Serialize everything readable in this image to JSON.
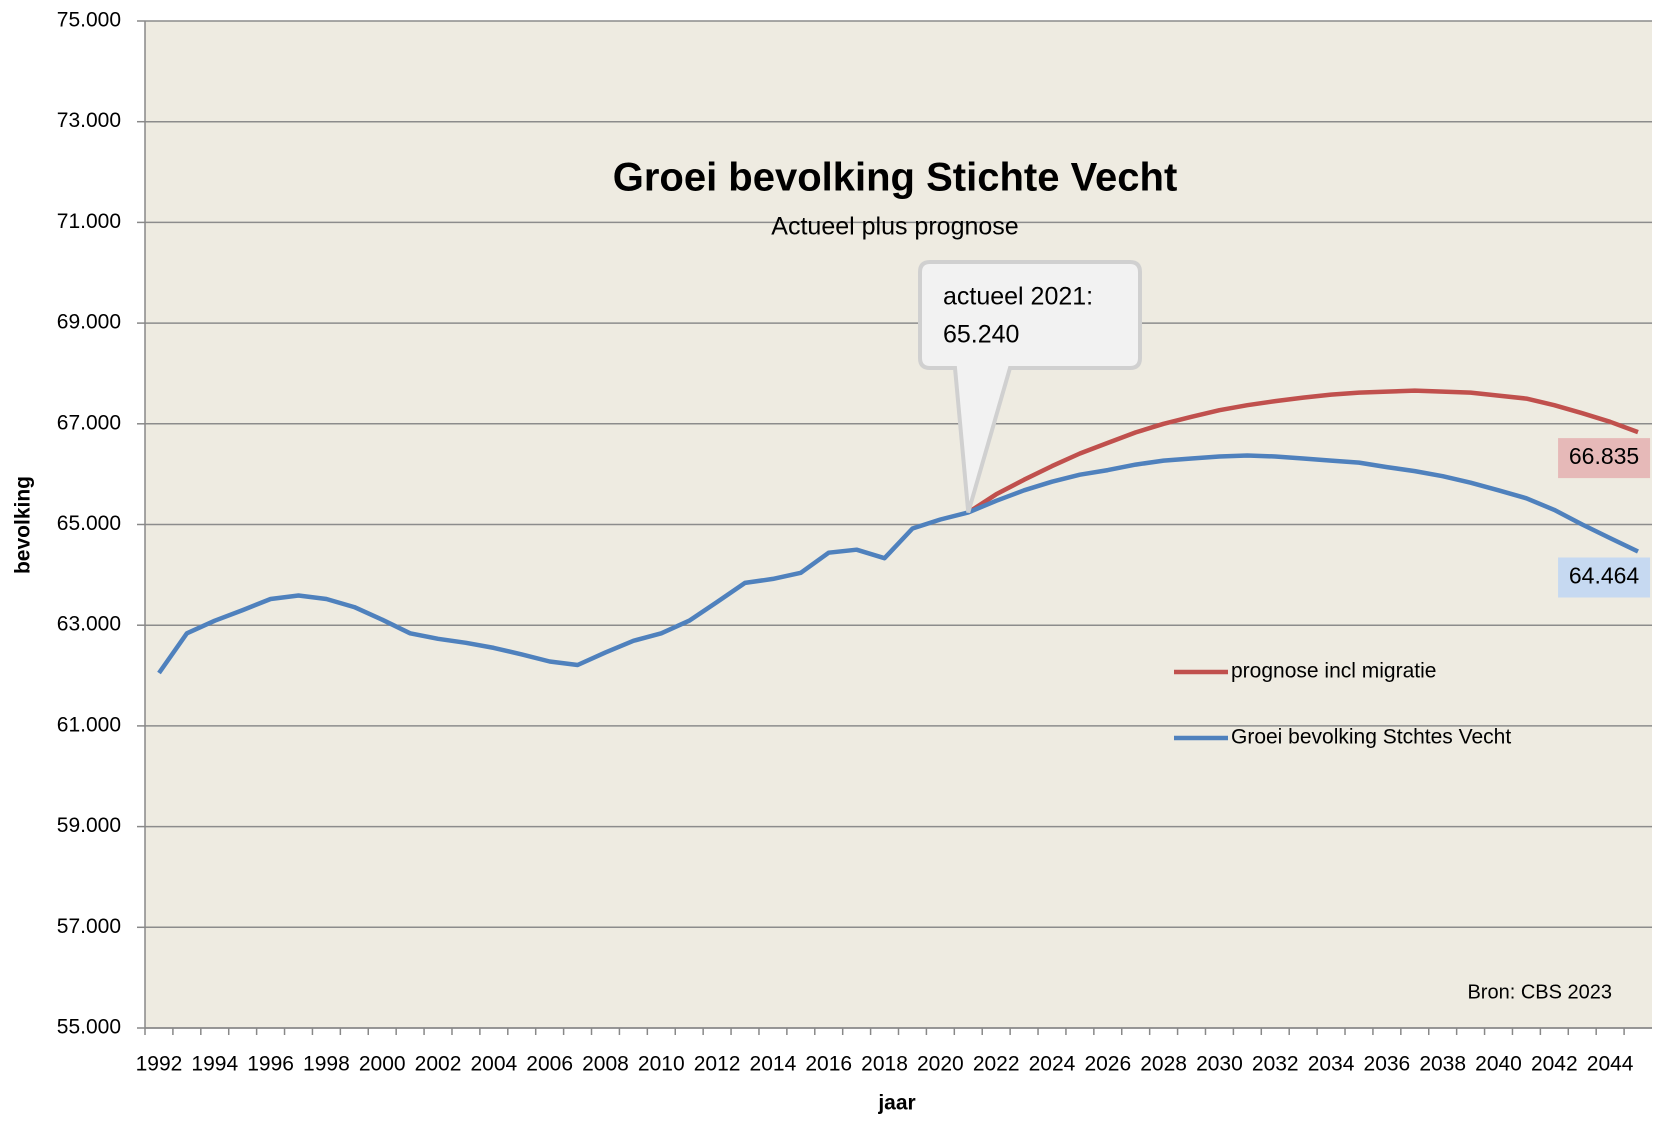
{
  "chart_data": {
    "type": "line",
    "title": "Groei bevolking Stichte Vecht",
    "subtitle": "Actueel plus prognose",
    "x_label": "jaar",
    "y_label": "bevolking",
    "source": "Bron: CBS 2023",
    "annotation": [
      "actueel 2021:",
      "65.240"
    ],
    "legend": "right",
    "grid": true,
    "categories": [
      "1992",
      null,
      "1994",
      null,
      "1996",
      null,
      "1998",
      null,
      "2000",
      null,
      "2002",
      null,
      "2004",
      null,
      "2006",
      null,
      "2008",
      null,
      "2010",
      null,
      "2012",
      null,
      "2014",
      null,
      "2016",
      null,
      "2018",
      null,
      "2020",
      null,
      "2022",
      null,
      "2024",
      null,
      "2026",
      null,
      "2028",
      null,
      "2030",
      null,
      "2032",
      null,
      "2034",
      null,
      "2036",
      null,
      "2038",
      null,
      "2040",
      null,
      "2042",
      null,
      "2044",
      null
    ],
    "ylim": [
      55000,
      75000
    ],
    "yticks": [
      {
        "value": 55000,
        "label": "55.000"
      },
      {
        "value": 57000,
        "label": "57.000"
      },
      {
        "value": 59000,
        "label": "59.000"
      },
      {
        "value": 61000,
        "label": "61.000"
      },
      {
        "value": 63000,
        "label": "63.000"
      },
      {
        "value": 65000,
        "label": "65.000"
      },
      {
        "value": 67000,
        "label": "67.000"
      },
      {
        "value": 69000,
        "label": "69.000"
      },
      {
        "value": 71000,
        "label": "71.000"
      },
      {
        "value": 73000,
        "label": "73.000"
      },
      {
        "value": 75000,
        "label": "75.000"
      }
    ],
    "series": [
      {
        "name": "prognose incl migratie",
        "color": "#c0504d",
        "label_bg": "#e6b9b8",
        "values": [
          null,
          null,
          null,
          null,
          null,
          null,
          null,
          null,
          null,
          null,
          null,
          null,
          null,
          null,
          null,
          null,
          null,
          null,
          null,
          null,
          null,
          null,
          null,
          null,
          null,
          null,
          null,
          null,
          null,
          65240,
          65600,
          65890,
          66160,
          66410,
          66620,
          66830,
          67000,
          67140,
          67270,
          67370,
          67450,
          67520,
          67580,
          67620,
          67640,
          67660,
          67640,
          67620,
          67560,
          67500,
          67370,
          67210,
          67040,
          66835
        ],
        "value_labels": [
          null,
          null,
          null,
          null,
          null,
          null,
          null,
          null,
          null,
          null,
          null,
          null,
          null,
          null,
          null,
          null,
          null,
          null,
          null,
          null,
          null,
          null,
          null,
          null,
          null,
          null,
          null,
          null,
          null,
          null,
          null,
          null,
          null,
          null,
          null,
          null,
          null,
          null,
          null,
          null,
          null,
          null,
          null,
          null,
          null,
          null,
          null,
          null,
          null,
          null,
          null,
          null,
          null,
          "66.835"
        ]
      },
      {
        "name": "Groei bevolking Stchtes Vecht",
        "color": "#4f81bd",
        "label_bg": "#c6d9f1",
        "values": [
          62050,
          62840,
          63090,
          63300,
          63520,
          63590,
          63520,
          63360,
          63110,
          62840,
          62730,
          62650,
          62550,
          62420,
          62280,
          62210,
          62460,
          62690,
          62840,
          63090,
          63460,
          63840,
          63920,
          64040,
          64440,
          64500,
          64330,
          64920,
          65100,
          65240,
          65470,
          65680,
          65850,
          65990,
          66080,
          66190,
          66270,
          66310,
          66350,
          66370,
          66350,
          66310,
          66270,
          66230,
          66140,
          66060,
          65960,
          65830,
          65680,
          65520,
          65290,
          65000,
          64730,
          64464
        ],
        "value_labels": [
          null,
          null,
          null,
          null,
          null,
          null,
          null,
          null,
          null,
          null,
          null,
          null,
          null,
          null,
          null,
          null,
          null,
          null,
          null,
          null,
          null,
          null,
          null,
          null,
          null,
          null,
          null,
          null,
          null,
          null,
          null,
          null,
          null,
          null,
          null,
          null,
          null,
          null,
          null,
          null,
          null,
          null,
          null,
          null,
          null,
          null,
          null,
          null,
          null,
          null,
          null,
          null,
          null,
          "64.464"
        ]
      }
    ]
  }
}
